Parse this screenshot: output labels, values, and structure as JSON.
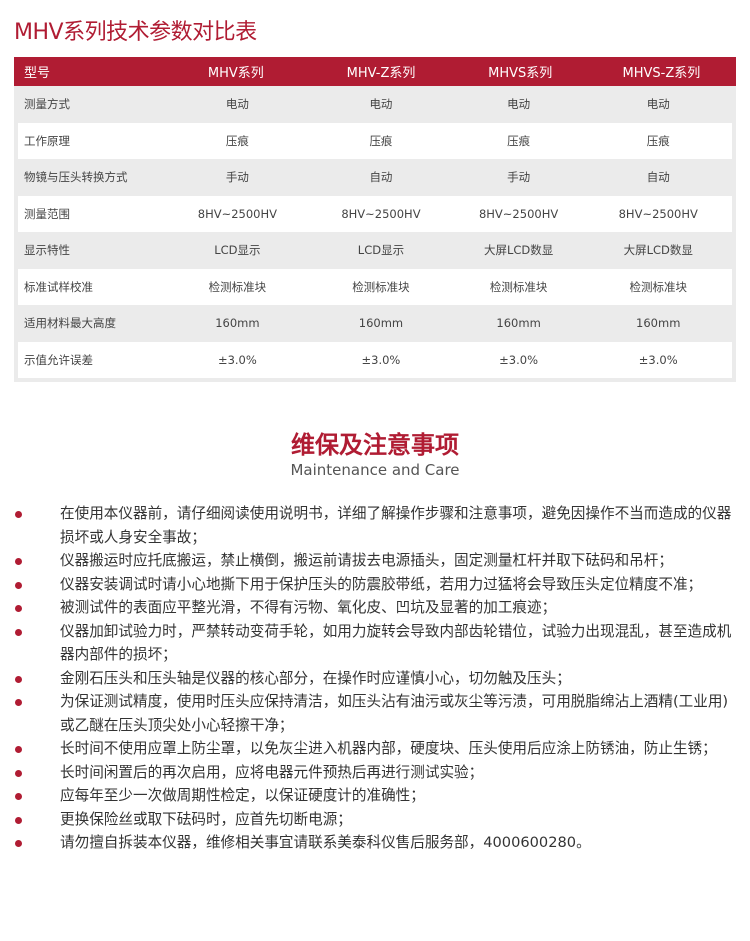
{
  "title": "MHV系列技术参数对比表",
  "table": {
    "headers": [
      "型号",
      "MHV系列",
      "MHV-Z系列",
      "MHVS系列",
      "MHVS-Z系列"
    ],
    "rows": [
      [
        "测量方式",
        "电动",
        "电动",
        "电动",
        "电动"
      ],
      [
        "工作原理",
        "压痕",
        "压痕",
        "压痕",
        "压痕"
      ],
      [
        "物镜与压头转换方式",
        "手动",
        "自动",
        "手动",
        "自动"
      ],
      [
        "测量范围",
        "8HV~2500HV",
        "8HV~2500HV",
        "8HV~2500HV",
        "8HV~2500HV"
      ],
      [
        "显示特性",
        "LCD显示",
        "LCD显示",
        "大屏LCD数显",
        "大屏LCD数显"
      ],
      [
        "标准试样校准",
        "检测标准块",
        "检测标准块",
        "检测标准块",
        "检测标准块"
      ],
      [
        "适用材料最大高度",
        "160mm",
        "160mm",
        "160mm",
        "160mm"
      ],
      [
        "示值允许误差",
        "±3.0%",
        "±3.0%",
        "±3.0%",
        "±3.0%"
      ]
    ]
  },
  "section": {
    "title": "维保及注意事项",
    "subtitle": "Maintenance and Care"
  },
  "notes": [
    "在使用本仪器前，请仔细阅读使用说明书，详细了解操作步骤和注意事项，避免因操作不当而造成的仪器损坏或人身安全事故；",
    "仪器搬运时应托底搬运，禁止横倒，搬运前请拔去电源插头，固定测量杠杆并取下砝码和吊杆；",
    "仪器安装调试时请小心地撕下用于保护压头的防震胶带纸，若用力过猛将会导致压头定位精度不准；",
    "被测试件的表面应平整光滑，不得有污物、氧化皮、凹坑及显著的加工痕迹；",
    "仪器加卸试验力时，严禁转动变荷手轮，如用力旋转会导致内部齿轮错位，试验力出现混乱，甚至造成机器内部件的损坏；",
    "金刚石压头和压头轴是仪器的核心部分，在操作时应谨慎小心，切勿触及压头；",
    "为保证测试精度，使用时压头应保持清洁，如压头沾有油污或灰尘等污渍，可用脱脂绵沾上酒精(工业用)或乙醚在压头顶尖处小心轻擦干净；",
    "长时间不使用应罩上防尘罩，以免灰尘进入机器内部，硬度块、压头使用后应涂上防锈油，防止生锈；",
    "长时间闲置后的再次启用，应将电器元件预热后再进行测试实验；",
    "应每年至少一次做周期性检定，以保证硬度计的准确性；",
    "更换保险丝或取下砝码时，应首先切断电源；",
    "请勿擅自拆装本仪器，维修相关事宜请联系美泰科仪售后服务部，4000600280。"
  ],
  "colors": {
    "accent": "#b01c33",
    "row_alt": "#ebebeb"
  }
}
